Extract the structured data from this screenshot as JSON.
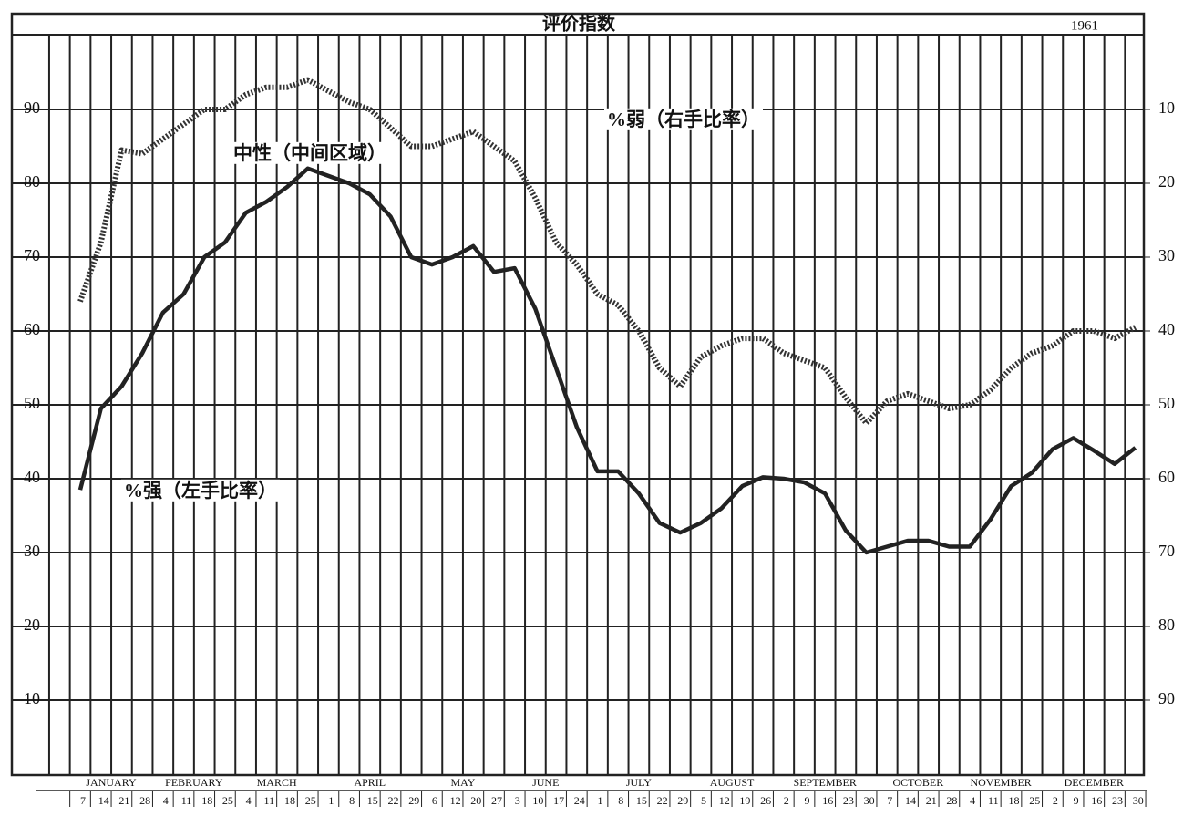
{
  "chart_data": {
    "type": "line",
    "title": "评价指数",
    "year": "1961",
    "annotations": [
      "中性（中间区域）",
      "%弱（右手比率）",
      "%强（左手比率）"
    ],
    "months": [
      {
        "name": "JANUARY",
        "days": [
          "7",
          "14",
          "21",
          "28"
        ]
      },
      {
        "name": "FEBRUARY",
        "days": [
          "4",
          "11",
          "18",
          "25"
        ]
      },
      {
        "name": "MARCH",
        "days": [
          "4",
          "11",
          "18",
          "25"
        ]
      },
      {
        "name": "APRIL",
        "days": [
          "1",
          "8",
          "15",
          "22",
          "29"
        ]
      },
      {
        "name": "MAY",
        "days": [
          "6",
          "12",
          "20",
          "27"
        ]
      },
      {
        "name": "JUNE",
        "days": [
          "3",
          "10",
          "17",
          "24"
        ]
      },
      {
        "name": "JULY",
        "days": [
          "1",
          "8",
          "15",
          "22",
          "29"
        ]
      },
      {
        "name": "AUGUST",
        "days": [
          "5",
          "12",
          "19",
          "26"
        ]
      },
      {
        "name": "SEPTEMBER",
        "days": [
          "2",
          "9",
          "16",
          "23",
          "30"
        ]
      },
      {
        "name": "OCTOBER",
        "days": [
          "7",
          "14",
          "21",
          "28"
        ]
      },
      {
        "name": "NOVEMBER",
        "days": [
          "4",
          "11",
          "18",
          "25"
        ]
      },
      {
        "name": "DECEMBER",
        "days": [
          "2",
          "9",
          "16",
          "23",
          "30"
        ]
      }
    ],
    "series": [
      {
        "color": "#222222",
        "line_style": "solid",
        "values": [
          38.5,
          49.5,
          52.5,
          57,
          62.5,
          65,
          70,
          72,
          76,
          77.5,
          79.5,
          82,
          81,
          80,
          78.5,
          75.5,
          70,
          69,
          70,
          71.5,
          68,
          68.5,
          63,
          55,
          47,
          41,
          41,
          38,
          34,
          32.7,
          34,
          36,
          39,
          40.2,
          40,
          39.5,
          38,
          33,
          30,
          30.8,
          31.6,
          31.6,
          30.8,
          30.8,
          34.5,
          39,
          40.8,
          44,
          45.5,
          43.8,
          42,
          44.2
        ]
      },
      {
        "color": "#333333",
        "line_style": "dotted",
        "axis": "y2",
        "values": [
          36,
          28,
          15.5,
          16,
          14,
          12,
          10,
          10,
          8,
          7,
          7,
          6,
          7.5,
          9,
          10,
          12.5,
          15,
          15,
          14,
          13,
          15,
          17,
          22,
          28,
          31,
          35,
          36.5,
          40,
          45,
          47.5,
          43.5,
          42,
          41,
          41,
          43,
          44,
          45,
          49,
          52.5,
          49.5,
          48.5,
          49.5,
          50.5,
          50,
          48,
          45,
          43,
          42,
          40,
          40,
          41,
          39.5
        ]
      }
    ],
    "ylim": [
      0,
      100
    ],
    "yticks": [
      10,
      20,
      30,
      40,
      50,
      60,
      70,
      80,
      90
    ],
    "y2lim": [
      100,
      0
    ],
    "y2ticks": [
      10,
      20,
      30,
      40,
      50,
      60,
      70,
      80,
      90
    ],
    "grid": true
  }
}
